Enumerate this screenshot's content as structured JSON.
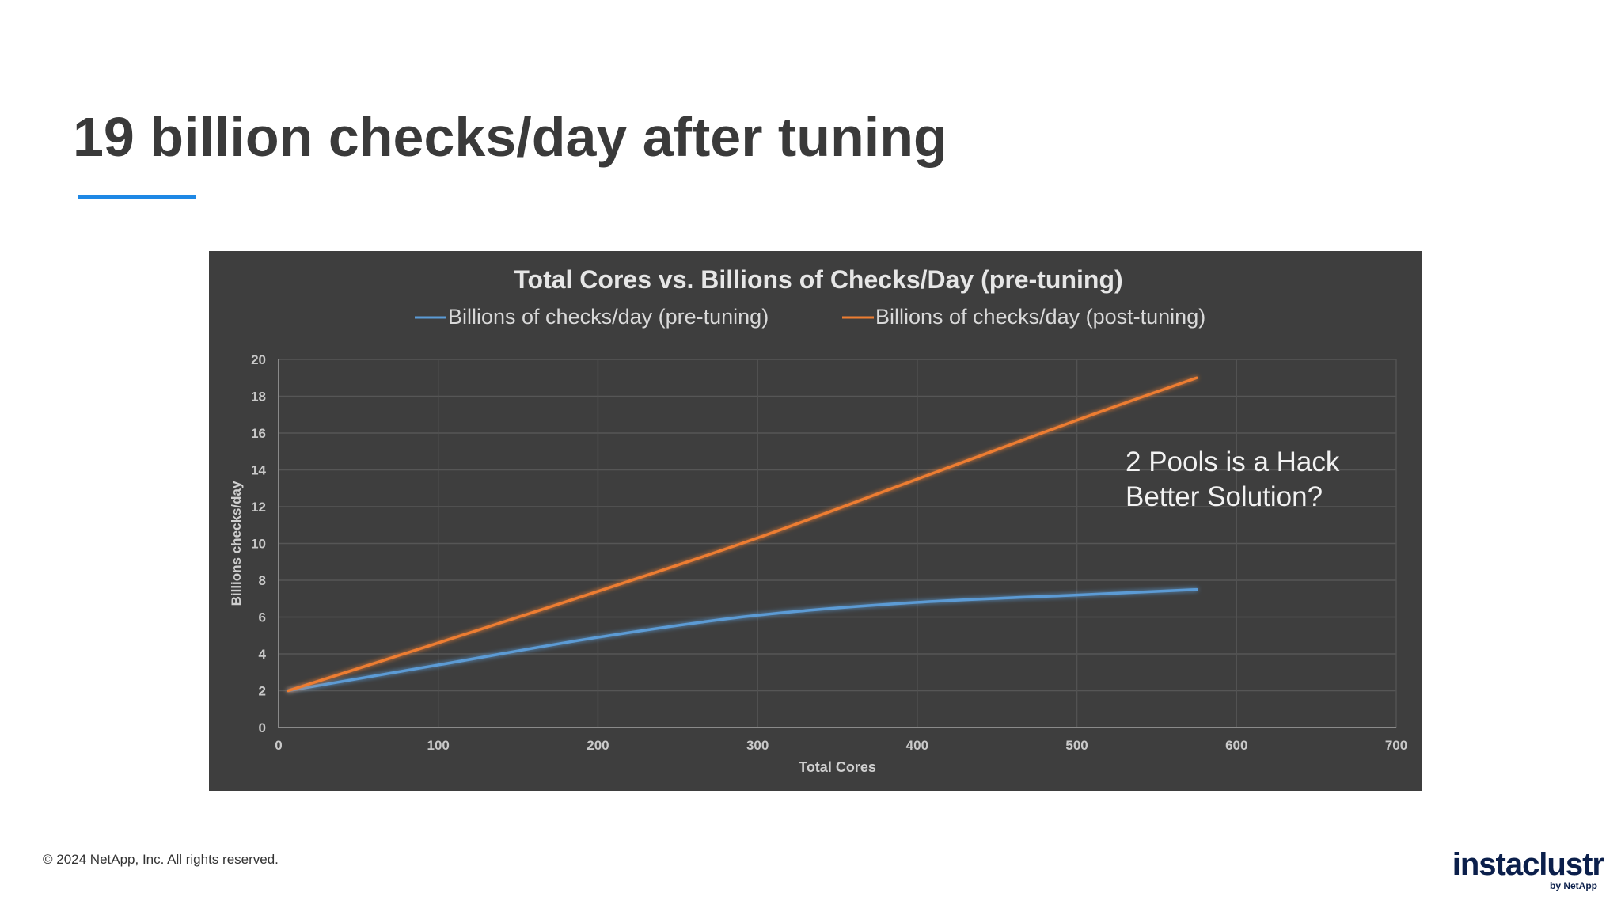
{
  "slide": {
    "title": "19 billion checks/day after tuning",
    "accent_color": "#1e88e5"
  },
  "footer": {
    "copyright": "© 2024 NetApp, Inc. All rights reserved.",
    "logo_text": "instaclustr",
    "logo_subtext": "by NetApp"
  },
  "chart_data": {
    "type": "line",
    "title": "Total Cores vs. Billions of Checks/Day (pre-tuning)",
    "xlabel": "Total Cores",
    "ylabel": "Billions checks/day",
    "xlim": [
      0,
      700
    ],
    "ylim": [
      0,
      20
    ],
    "xticks": [
      0,
      100,
      200,
      300,
      400,
      500,
      600,
      700
    ],
    "yticks": [
      0,
      2,
      4,
      6,
      8,
      10,
      12,
      14,
      16,
      18,
      20
    ],
    "grid": true,
    "legend": "top",
    "annotation": [
      "2 Pools is a Hack",
      "Better Solution?"
    ],
    "series": [
      {
        "name": "Billions of checks/day (pre-tuning)",
        "color": "#5b9bd5",
        "x": [
          6,
          100,
          200,
          300,
          400,
          500,
          575
        ],
        "y": [
          2.0,
          3.4,
          4.9,
          6.1,
          6.8,
          7.2,
          7.5
        ]
      },
      {
        "name": "Billions of checks/day (post-tuning)",
        "color": "#ed7d31",
        "x": [
          6,
          100,
          200,
          300,
          400,
          500,
          575
        ],
        "y": [
          2.0,
          4.6,
          7.4,
          10.3,
          13.5,
          16.7,
          19.0
        ]
      }
    ]
  }
}
